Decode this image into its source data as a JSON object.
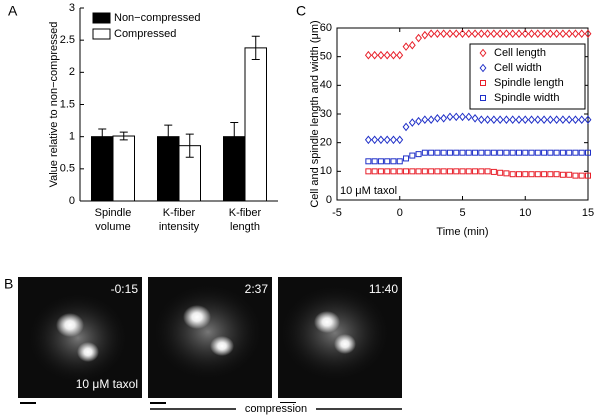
{
  "chart_data": [
    {
      "type": "bar",
      "panel": "A",
      "ylabel": "Value relative to non−compressed",
      "categories": [
        [
          "Spindle",
          "volume"
        ],
        [
          "K-fiber",
          "intensity"
        ],
        [
          "K-fiber",
          "length"
        ]
      ],
      "series": [
        {
          "name": "Non−compressed",
          "color": "#000000",
          "values": [
            1,
            1,
            1
          ],
          "errors": [
            0.12,
            0.18,
            0.22
          ]
        },
        {
          "name": "Compressed",
          "color": "#ffffff",
          "values": [
            1.01,
            0.86,
            2.38
          ],
          "errors": [
            0.06,
            0.18,
            0.18
          ]
        }
      ],
      "ylim": [
        0,
        3
      ],
      "yticks": [
        0,
        0.5,
        1,
        1.5,
        2,
        2.5,
        3
      ],
      "legend": "upper left"
    },
    {
      "type": "scatter",
      "panel": "C",
      "xlabel": "Time (min)",
      "ylabel": "Cell and spindle length and width (μm)",
      "annotation": "10 μM taxol",
      "x": [
        -2.5,
        -2,
        -1.5,
        -1,
        -0.5,
        0,
        0.5,
        1,
        1.5,
        2,
        2.5,
        3,
        3.5,
        4,
        4.5,
        5,
        5.5,
        6,
        6.5,
        7,
        7.5,
        8,
        8.5,
        9,
        9.5,
        10,
        10.5,
        11,
        11.5,
        12,
        12.5,
        13,
        13.5,
        14,
        14.5,
        15
      ],
      "series": [
        {
          "name": "Cell length",
          "color": "#e8202a",
          "marker": "diamond",
          "values": [
            50.5,
            50.5,
            50.5,
            50.5,
            50.5,
            50.5,
            53.5,
            54,
            56.5,
            57.5,
            58,
            58,
            58,
            58,
            58,
            58,
            58,
            58,
            58,
            58,
            58,
            58,
            58,
            58,
            58,
            58,
            58,
            58,
            58,
            58,
            58,
            58,
            58,
            58,
            58,
            58
          ]
        },
        {
          "name": "Cell width",
          "color": "#2030c8",
          "marker": "diamond",
          "values": [
            21,
            21,
            21,
            21,
            21,
            21,
            25.5,
            27,
            27.5,
            28,
            28,
            28.5,
            28.5,
            29,
            29,
            29,
            29,
            28.5,
            28,
            28,
            28,
            28,
            28,
            28,
            28,
            28,
            28,
            28,
            28,
            28,
            28,
            28,
            28,
            28,
            28,
            28
          ]
        },
        {
          "name": "Spindle length",
          "color": "#e8202a",
          "marker": "square",
          "values": [
            10,
            10,
            10,
            10,
            10,
            10,
            10,
            10,
            10,
            10,
            10,
            10,
            10,
            10,
            10,
            10,
            10,
            10,
            10,
            10,
            9.8,
            9.5,
            9.3,
            9,
            9,
            9,
            9,
            9,
            9,
            9,
            9,
            8.8,
            8.8,
            8.5,
            8.5,
            8.5
          ]
        },
        {
          "name": "Spindle width",
          "color": "#2030c8",
          "marker": "square",
          "values": [
            13.5,
            13.5,
            13.5,
            13.5,
            13.5,
            13.5,
            14.5,
            15.5,
            16,
            16.5,
            16.5,
            16.5,
            16.5,
            16.5,
            16.5,
            16.5,
            16.5,
            16.5,
            16.5,
            16.5,
            16.5,
            16.5,
            16.5,
            16.5,
            16.5,
            16.5,
            16.5,
            16.5,
            16.5,
            16.5,
            16.5,
            16.5,
            16.5,
            16.5,
            16.5,
            16.5
          ]
        }
      ],
      "xlim": [
        -5,
        15
      ],
      "xticks": [
        -5,
        0,
        5,
        10,
        15
      ],
      "ylim": [
        0,
        60
      ],
      "yticks": [
        0,
        10,
        20,
        30,
        40,
        50,
        60
      ],
      "legend": "upper right"
    }
  ],
  "panel_b": {
    "label": "B",
    "timestamps": [
      "-0:15",
      "2:37",
      "11:40"
    ],
    "annotation": "10 μM taxol",
    "bracket_label": "compression"
  }
}
